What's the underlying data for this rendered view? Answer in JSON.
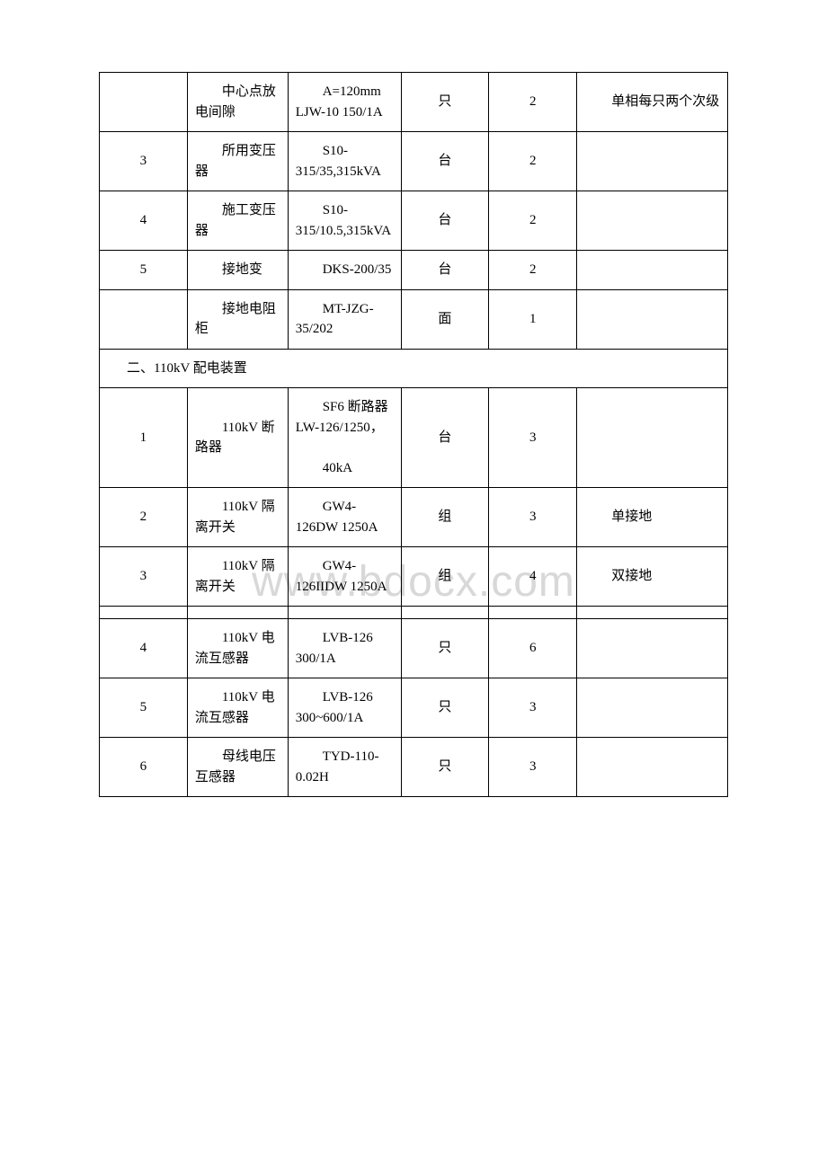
{
  "watermark": "www.bdocx.com",
  "section2_title": "二、110kV 配电装置",
  "rows": [
    {
      "num": "",
      "name": "　　中心点放电间隙",
      "spec": "　　A=120mm LJW-10 150/1A",
      "unit": "只",
      "qty": "2",
      "note": "　　单相每只两个次级"
    },
    {
      "num": "3",
      "name": "　　所用变压器",
      "spec": "　　S10-315/35,315kVA",
      "unit": "台",
      "qty": "2",
      "note": ""
    },
    {
      "num": "4",
      "name": "　　施工变压器",
      "spec": "　　S10-315/10.5,315kVA",
      "unit": "台",
      "qty": "2",
      "note": ""
    },
    {
      "num": "5",
      "name": "　　接地变",
      "spec": "　　DKS-200/35",
      "unit": "台",
      "qty": "2",
      "note": ""
    },
    {
      "num": "",
      "name": "　　接地电阻柜",
      "spec": "　　MT-JZG-35/202",
      "unit": "面",
      "qty": "1",
      "note": ""
    }
  ],
  "rows2": [
    {
      "num": "1",
      "name": "　　110kV 断路器",
      "spec": "　　SF6 断路器 LW-126/1250，\n\n　　40kA",
      "unit": "台",
      "qty": "3",
      "note": ""
    },
    {
      "num": "2",
      "name": "　　110kV 隔离开关",
      "spec": "　　GW4-126DW 1250A",
      "unit": "组",
      "qty": "3",
      "note": "　　单接地"
    },
    {
      "num": "3",
      "name": "　　110kV 隔离开关",
      "spec": "　　GW4-126IIDW 1250A",
      "unit": "组",
      "qty": "4",
      "note": "　　双接地"
    }
  ],
  "rows3": [
    {
      "num": "4",
      "name": "　　110kV 电流互感器",
      "spec": "　　LVB-126 300/1A",
      "unit": "只",
      "qty": "6",
      "note": ""
    },
    {
      "num": "5",
      "name": "　　110kV 电流互感器",
      "spec": "　　LVB-126 300~600/1A",
      "unit": "只",
      "qty": "3",
      "note": ""
    },
    {
      "num": "6",
      "name": "　　母线电压互感器",
      "spec": "　　TYD-110-0.02H",
      "unit": "只",
      "qty": "3",
      "note": ""
    }
  ]
}
